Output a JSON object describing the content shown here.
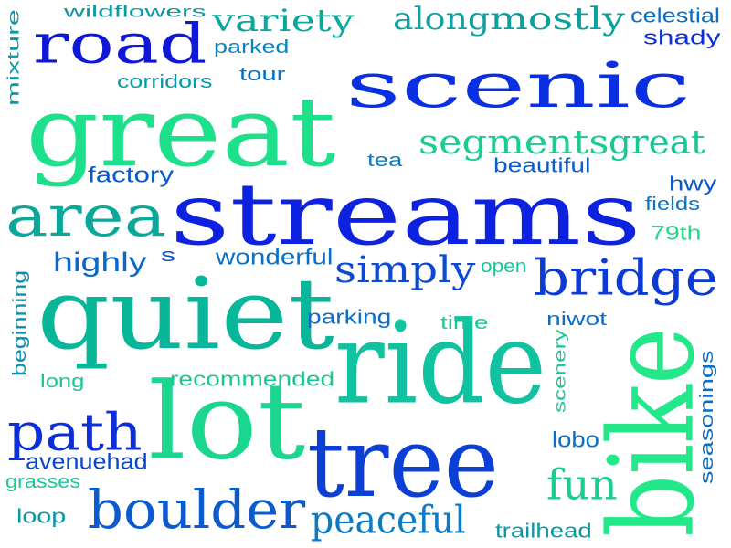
{
  "words": [
    {
      "id": "scenic",
      "text": "scenic",
      "color": "#0a2fe0"
    },
    {
      "id": "great",
      "text": "great",
      "color": "#1de08a"
    },
    {
      "id": "streams",
      "text": "streams",
      "color": "#0c22e0"
    },
    {
      "id": "quiet",
      "text": "quiet",
      "color": "#08b79a"
    },
    {
      "id": "ride",
      "text": "ride",
      "color": "#10c2a0"
    },
    {
      "id": "lot",
      "text": "lot",
      "color": "#1ad68f"
    },
    {
      "id": "tree",
      "text": "tree",
      "color": "#0b3fd6"
    },
    {
      "id": "bike",
      "text": "bike",
      "color": "#22e88a"
    },
    {
      "id": "road",
      "text": "road",
      "color": "#1018d8"
    },
    {
      "id": "area",
      "text": "area",
      "color": "#0aa89a"
    },
    {
      "id": "boulder",
      "text": "boulder",
      "color": "#0c5ad0"
    },
    {
      "id": "path",
      "text": "path",
      "color": "#0d2fd8"
    },
    {
      "id": "bridge",
      "text": "bridge",
      "color": "#0b3bd4"
    },
    {
      "id": "variety",
      "text": "variety",
      "color": "#0aa89a"
    },
    {
      "id": "along",
      "text": "along",
      "color": "#10a0a0"
    },
    {
      "id": "mostly",
      "text": "mostly",
      "color": "#0aa09c"
    },
    {
      "id": "segments",
      "text": "segments",
      "color": "#1acb93"
    },
    {
      "id": "great2",
      "text": "great",
      "color": "#18c696"
    },
    {
      "id": "simply",
      "text": "simply",
      "color": "#0c4ad4"
    },
    {
      "id": "peaceful",
      "text": "peaceful",
      "color": "#0b7bc6"
    },
    {
      "id": "fun",
      "text": "fun",
      "color": "#1acb93"
    },
    {
      "id": "highly",
      "text": "highly",
      "color": "#0a66c8"
    },
    {
      "id": "avenuehad",
      "text": "avenuehad",
      "color": "#0a47c8"
    },
    {
      "id": "wildflowers",
      "text": "wildflowers",
      "color": "#0a98a4"
    },
    {
      "id": "celestial",
      "text": "celestial",
      "color": "#0a6ec6"
    },
    {
      "id": "shady",
      "text": "shady",
      "color": "#0c2fdc"
    },
    {
      "id": "parked",
      "text": "parked",
      "color": "#0a84c0"
    },
    {
      "id": "tour",
      "text": "tour",
      "color": "#0a72c4"
    },
    {
      "id": "corridors",
      "text": "corridors",
      "color": "#0a9aa4"
    },
    {
      "id": "mixture",
      "text": "mixture",
      "color": "#0a9aa4"
    },
    {
      "id": "tea",
      "text": "tea",
      "color": "#0a7ac4"
    },
    {
      "id": "beautiful",
      "text": "beautiful",
      "color": "#0a5cd0"
    },
    {
      "id": "factory",
      "text": "factory",
      "color": "#0a58cc"
    },
    {
      "id": "hwy",
      "text": "hwy",
      "color": "#0a58cc"
    },
    {
      "id": "fields",
      "text": "fields",
      "color": "#0a74c2"
    },
    {
      "id": "79th",
      "text": "79th",
      "color": "#22d88c"
    },
    {
      "id": "s",
      "text": "s",
      "color": "#0a50cc"
    },
    {
      "id": "wonderful",
      "text": "wonderful",
      "color": "#0a70c4"
    },
    {
      "id": "open",
      "text": "open",
      "color": "#1ac696"
    },
    {
      "id": "parking",
      "text": "parking",
      "color": "#0a6ec6"
    },
    {
      "id": "time",
      "text": "time",
      "color": "#1ac696"
    },
    {
      "id": "niwot",
      "text": "niwot",
      "color": "#0a6ec6"
    },
    {
      "id": "beginning",
      "text": "beginning",
      "color": "#0a90b2"
    },
    {
      "id": "recommended",
      "text": "recommended",
      "color": "#1ac696"
    },
    {
      "id": "long",
      "text": "long",
      "color": "#1ac696"
    },
    {
      "id": "scenery",
      "text": "scenery",
      "color": "#1ac696"
    },
    {
      "id": "seasonings",
      "text": "seasonings",
      "color": "#0a6ec6"
    },
    {
      "id": "lobo",
      "text": "lobo",
      "color": "#0a6ec6"
    },
    {
      "id": "grasses",
      "text": "grasses",
      "color": "#1ac696"
    },
    {
      "id": "loop",
      "text": "loop",
      "color": "#0a98a4"
    },
    {
      "id": "trailhead",
      "text": "trailhead",
      "color": "#0a98a4"
    }
  ]
}
